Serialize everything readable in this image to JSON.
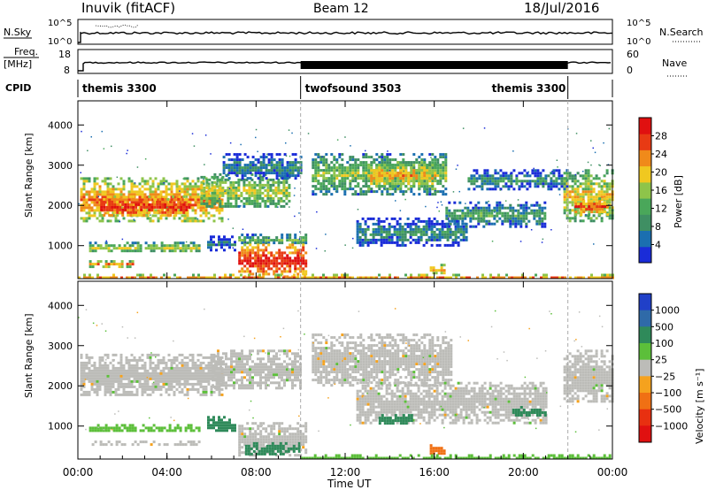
{
  "header": {
    "station": "Inuvik (fitACF)",
    "beam": "Beam 12",
    "date": "18/Jul/2016"
  },
  "strip": {
    "nsky_label": "N.Sky",
    "nsky_ticks": [
      "10^5",
      "10^0"
    ],
    "nsearch_label": "N.Search",
    "nsearch_ticks": [
      "10^5",
      "10^0"
    ],
    "freq_label": "Freq.",
    "freq_unit": "[MHz]",
    "freq_ticks": [
      "18",
      "8"
    ],
    "nave_label": "Nave",
    "nave_ticks": [
      "60",
      "0"
    ],
    "cpid_label": "CPID",
    "modes": [
      {
        "name": "themis 3300",
        "start_h": 0,
        "end_h": 10
      },
      {
        "name": "twofsound 3503",
        "start_h": 10,
        "end_h": 22
      },
      {
        "name": "themis 3300",
        "start_h": 22,
        "end_h": 24
      }
    ]
  },
  "time_axis": {
    "label": "Time UT",
    "ticks": [
      "00:00",
      "04:00",
      "08:00",
      "12:00",
      "16:00",
      "20:00",
      "00:00"
    ],
    "range_h": [
      0,
      24
    ]
  },
  "chart_data": [
    {
      "type": "heatmap",
      "panel": "power",
      "ylabel": "Slant Range [km]",
      "yticks": [
        1000,
        2000,
        3000,
        4000
      ],
      "ylim": [
        180,
        4600
      ],
      "colorbar": {
        "label": "Power [dB]",
        "ticks": [
          4,
          8,
          12,
          16,
          20,
          24,
          28
        ],
        "range": [
          0,
          32
        ],
        "colors": [
          "#1a2cd8",
          "#1b6fb0",
          "#3f8f63",
          "#4aa75a",
          "#8ec44a",
          "#f0c820",
          "#f08a1a",
          "#e83a14",
          "#e01010"
        ]
      },
      "regions": [
        {
          "t0": 0.1,
          "t1": 6.5,
          "r0": 1600,
          "r1": 2700,
          "level": 24
        },
        {
          "t0": 1.0,
          "t1": 5.0,
          "r0": 1750,
          "r1": 2250,
          "level": 29
        },
        {
          "t0": 5.5,
          "t1": 9.5,
          "r0": 1950,
          "r1": 2800,
          "level": 18
        },
        {
          "t0": 6.5,
          "t1": 10.0,
          "r0": 2650,
          "r1": 3300,
          "level": 9
        },
        {
          "t0": 0.5,
          "t1": 5.5,
          "r0": 850,
          "r1": 1100,
          "level": 18
        },
        {
          "t0": 0.5,
          "t1": 2.5,
          "r0": 500,
          "r1": 640,
          "level": 24
        },
        {
          "t0": 5.8,
          "t1": 7.0,
          "r0": 900,
          "r1": 1250,
          "level": 8
        },
        {
          "t0": 7.2,
          "t1": 10.2,
          "r0": 1050,
          "r1": 1300,
          "level": 14
        },
        {
          "t0": 7.2,
          "t1": 10.2,
          "r0": 250,
          "r1": 1050,
          "level": 30
        },
        {
          "t0": 10.5,
          "t1": 16.5,
          "r0": 2300,
          "r1": 3300,
          "level": 16
        },
        {
          "t0": 13.0,
          "t1": 16.0,
          "r0": 2400,
          "r1": 3100,
          "level": 22
        },
        {
          "t0": 12.5,
          "t1": 17.5,
          "r0": 1000,
          "r1": 1700,
          "level": 10
        },
        {
          "t0": 16.5,
          "t1": 21.0,
          "r0": 1500,
          "r1": 2100,
          "level": 12
        },
        {
          "t0": 17.5,
          "t1": 22.0,
          "r0": 2400,
          "r1": 2900,
          "level": 10
        },
        {
          "t0": 21.8,
          "t1": 24.0,
          "r0": 1600,
          "r1": 2900,
          "level": 20
        },
        {
          "t0": 22.3,
          "t1": 23.8,
          "r0": 1800,
          "r1": 2200,
          "level": 27
        },
        {
          "t0": 15.8,
          "t1": 16.5,
          "r0": 300,
          "r1": 550,
          "level": 22
        },
        {
          "t0": 0.0,
          "t1": 24.0,
          "r0": 200,
          "r1": 300,
          "level": 26
        }
      ]
    },
    {
      "type": "heatmap",
      "panel": "velocity",
      "ylabel": "Slant Range [km]",
      "yticks": [
        1000,
        2000,
        3000,
        4000
      ],
      "ylim": [
        180,
        4600
      ],
      "colorbar": {
        "label": "Velocity [m s⁻¹]",
        "ticks": [
          "1000",
          "500",
          "100",
          "25",
          "−25",
          "−100",
          "−500",
          "−1000"
        ],
        "colors": [
          "#2040c8",
          "#2f6aa8",
          "#2f8a5a",
          "#5cbf3a",
          "#bcbcb8",
          "#f5a21e",
          "#f07014",
          "#e83010",
          "#e01010"
        ]
      },
      "regions": [
        {
          "t0": 0.1,
          "t1": 6.5,
          "r0": 1750,
          "r1": 2800,
          "class": "ground"
        },
        {
          "t0": 6.0,
          "t1": 10.0,
          "r0": 1950,
          "r1": 2900,
          "class": "ground"
        },
        {
          "t0": 10.5,
          "t1": 16.8,
          "r0": 2000,
          "r1": 3300,
          "class": "ground"
        },
        {
          "t0": 12.5,
          "t1": 21.0,
          "r0": 1100,
          "r1": 2100,
          "class": "ground"
        },
        {
          "t0": 21.8,
          "t1": 24.0,
          "r0": 1600,
          "r1": 2900,
          "class": "ground"
        },
        {
          "t0": 7.2,
          "t1": 10.2,
          "r0": 300,
          "r1": 1100,
          "class": "ground"
        },
        {
          "t0": 0.5,
          "t1": 5.5,
          "r0": 860,
          "r1": 1050,
          "class": "slow_pos"
        },
        {
          "t0": 0.5,
          "t1": 5.5,
          "r0": 560,
          "r1": 640,
          "class": "ground"
        },
        {
          "t0": 7.5,
          "t1": 10.0,
          "r0": 300,
          "r1": 600,
          "class": "mid_pos"
        },
        {
          "t0": 5.8,
          "t1": 7.0,
          "r0": 900,
          "r1": 1250,
          "class": "mid_pos"
        },
        {
          "t0": 13.5,
          "t1": 15.0,
          "r0": 1100,
          "r1": 1300,
          "class": "mid_pos"
        },
        {
          "t0": 19.5,
          "t1": 21.0,
          "r0": 1250,
          "r1": 1500,
          "class": "mid_pos"
        },
        {
          "t0": 15.8,
          "t1": 16.5,
          "r0": 300,
          "r1": 550,
          "class": "neg"
        },
        {
          "t0": 10.0,
          "t1": 24.0,
          "r0": 200,
          "r1": 300,
          "class": "slow_pos"
        }
      ]
    }
  ],
  "colors": {
    "strip_line": "#000000",
    "mode_divider": "#000000",
    "dashed_marker": "#aaaaaa"
  }
}
